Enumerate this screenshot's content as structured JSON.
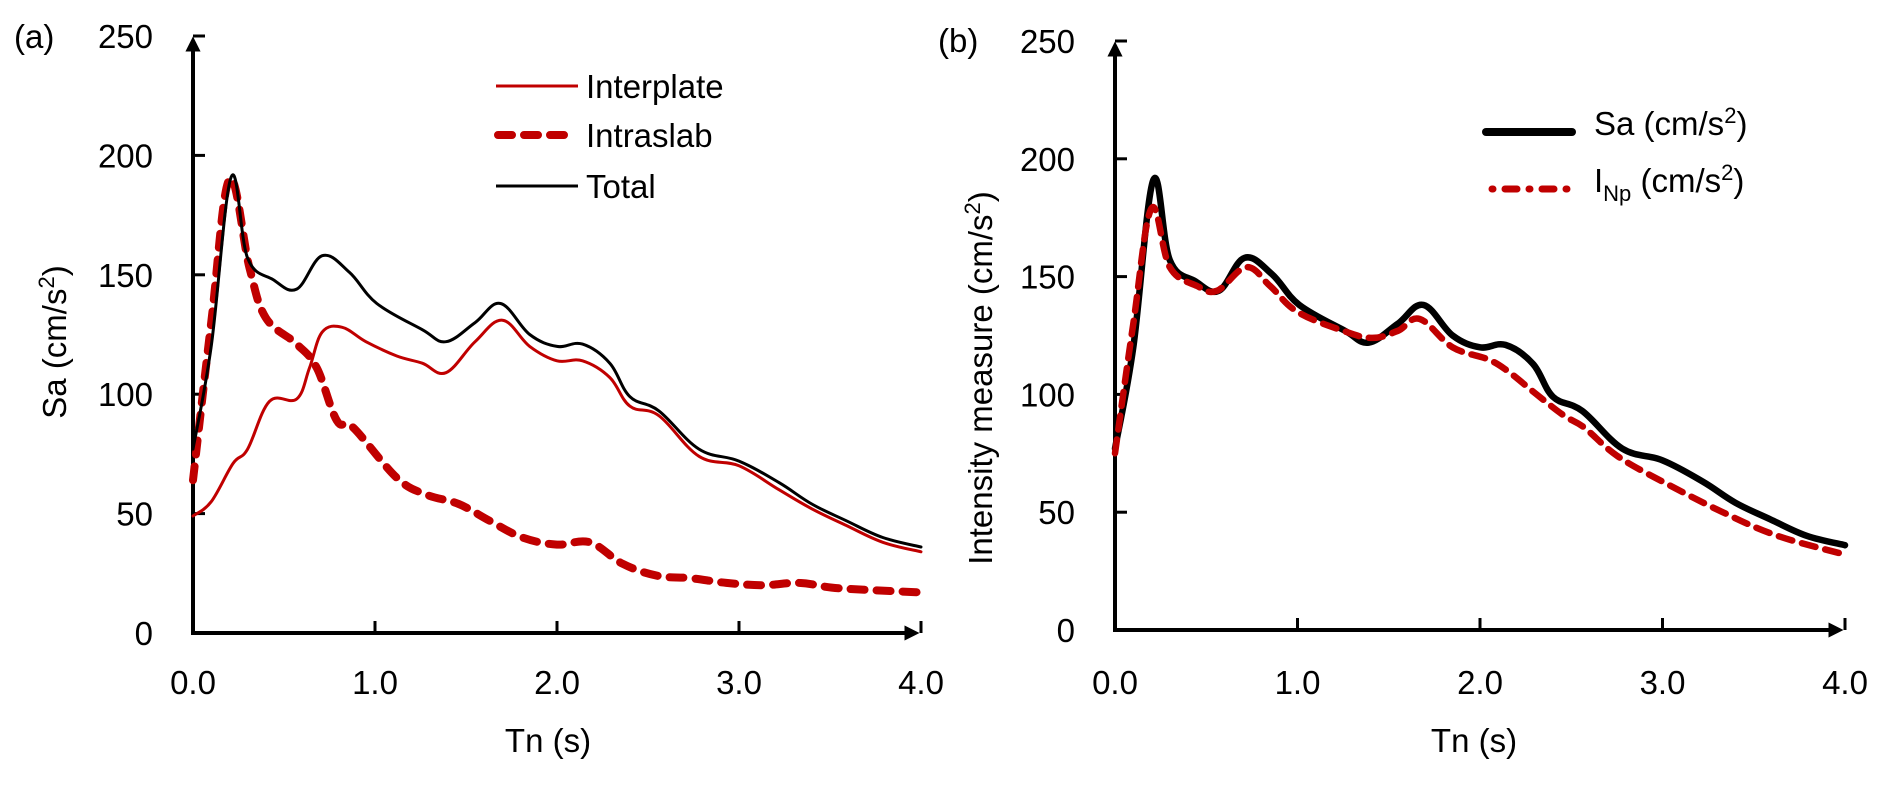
{
  "chart_data": [
    {
      "panel_label": "(a)",
      "type": "line",
      "title": "",
      "xlabel": "Tn (s)",
      "ylabel_main": "Sa (cm/s",
      "ylabel_sup": "2",
      "ylabel_tail": ")",
      "xlim": [
        0,
        4
      ],
      "ylim": [
        0,
        250
      ],
      "xticks": [
        0,
        1,
        2,
        3,
        4
      ],
      "xtick_labels": [
        "0.0",
        "1.0",
        "2.0",
        "3.0",
        "4.0"
      ],
      "yticks": [
        0,
        50,
        100,
        150,
        200,
        250
      ],
      "ytick_labels": [
        "0",
        "50",
        "100",
        "150",
        "200",
        "250"
      ],
      "grid": false,
      "legend_position": "top-center",
      "series": [
        {
          "name": "Interplate",
          "color": "#c00000",
          "style": "solid-thin",
          "x": [
            0.0,
            0.1,
            0.22,
            0.3,
            0.42,
            0.57,
            0.64,
            0.71,
            0.82,
            0.95,
            1.12,
            1.26,
            1.39,
            1.55,
            1.7,
            1.85,
            2.0,
            2.14,
            2.29,
            2.4,
            2.56,
            2.78,
            3.0,
            3.22,
            3.4,
            3.59,
            3.79,
            4.0
          ],
          "y": [
            49,
            55,
            71,
            77,
            97,
            98,
            111,
            126,
            128,
            122,
            116,
            113,
            109,
            122,
            131,
            120,
            114,
            114,
            107,
            95,
            91,
            74,
            70,
            60,
            52,
            45,
            38,
            34
          ]
        },
        {
          "name": "Intraslab",
          "color": "#c00000",
          "style": "dashed-thick",
          "x": [
            0.0,
            0.1,
            0.2,
            0.31,
            0.4,
            0.57,
            0.68,
            0.79,
            0.88,
            1.12,
            1.28,
            1.46,
            1.63,
            1.81,
            2.0,
            2.18,
            2.36,
            2.55,
            2.73,
            2.93,
            3.13,
            3.33,
            3.51,
            3.72,
            4.0
          ],
          "y": [
            64,
            130,
            190,
            153,
            132,
            121,
            111,
            89,
            86,
            65,
            58,
            54,
            47,
            40,
            37,
            38,
            29,
            24,
            23,
            21,
            20,
            21,
            19,
            18,
            17
          ]
        },
        {
          "name": "Total",
          "color": "#000000",
          "style": "solid-thin",
          "x": [
            0.0,
            0.1,
            0.21,
            0.3,
            0.44,
            0.57,
            0.71,
            0.86,
            1.01,
            1.26,
            1.39,
            1.55,
            1.69,
            1.85,
            2.0,
            2.14,
            2.29,
            2.4,
            2.56,
            2.78,
            3.0,
            3.22,
            3.4,
            3.59,
            3.79,
            4.0
          ],
          "y": [
            77,
            120,
            191,
            157,
            148,
            144,
            158,
            151,
            138,
            127,
            122,
            130,
            138,
            125,
            120,
            121,
            113,
            99,
            93,
            77,
            72,
            63,
            54,
            47,
            40,
            36
          ]
        }
      ]
    },
    {
      "panel_label": "(b)",
      "type": "line",
      "title": "",
      "xlabel": "Tn (s)",
      "ylabel_main": "Intensity measure (cm/s",
      "ylabel_sup": "2",
      "ylabel_tail": ")",
      "xlim": [
        0,
        4
      ],
      "ylim": [
        0,
        250
      ],
      "xticks": [
        0,
        1,
        2,
        3,
        4
      ],
      "xtick_labels": [
        "0.0",
        "1.0",
        "2.0",
        "3.0",
        "4.0"
      ],
      "yticks": [
        0,
        50,
        100,
        150,
        200,
        250
      ],
      "ytick_labels": [
        "0",
        "50",
        "100",
        "150",
        "200",
        "250"
      ],
      "grid": false,
      "legend_position": "top-right",
      "series": [
        {
          "name": "Sa (cm/s2)",
          "legend_main": "Sa (cm/s",
          "legend_sup": "2",
          "legend_tail": ")",
          "color": "#000000",
          "style": "solid-thick",
          "x": [
            0.0,
            0.1,
            0.21,
            0.3,
            0.44,
            0.57,
            0.71,
            0.86,
            1.01,
            1.26,
            1.39,
            1.55,
            1.69,
            1.85,
            2.0,
            2.14,
            2.29,
            2.4,
            2.56,
            2.78,
            3.0,
            3.22,
            3.4,
            3.59,
            3.79,
            4.0
          ],
          "y": [
            77,
            120,
            191,
            157,
            148,
            144,
            158,
            151,
            138,
            127,
            122,
            130,
            138,
            125,
            120,
            121,
            113,
            99,
            93,
            77,
            72,
            63,
            54,
            47,
            40,
            36
          ]
        },
        {
          "name": "INp (cm/s2)",
          "legend_main": "I",
          "legend_sub": "Np",
          "legend_mid": " (cm/s",
          "legend_sup": "2",
          "legend_tail": ")",
          "color": "#c00000",
          "style": "dashdot-thick",
          "x": [
            0.0,
            0.1,
            0.2,
            0.3,
            0.45,
            0.56,
            0.72,
            0.85,
            1.0,
            1.25,
            1.41,
            1.55,
            1.67,
            1.85,
            2.04,
            2.15,
            2.31,
            2.46,
            2.57,
            2.75,
            3.0,
            3.33,
            3.63,
            4.0
          ],
          "y": [
            75,
            130,
            179,
            154,
            146,
            144,
            154,
            146,
            135,
            127,
            124,
            127,
            132,
            120,
            115,
            110,
            100,
            91,
            86,
            74,
            63,
            50,
            40,
            32
          ]
        }
      ]
    }
  ]
}
